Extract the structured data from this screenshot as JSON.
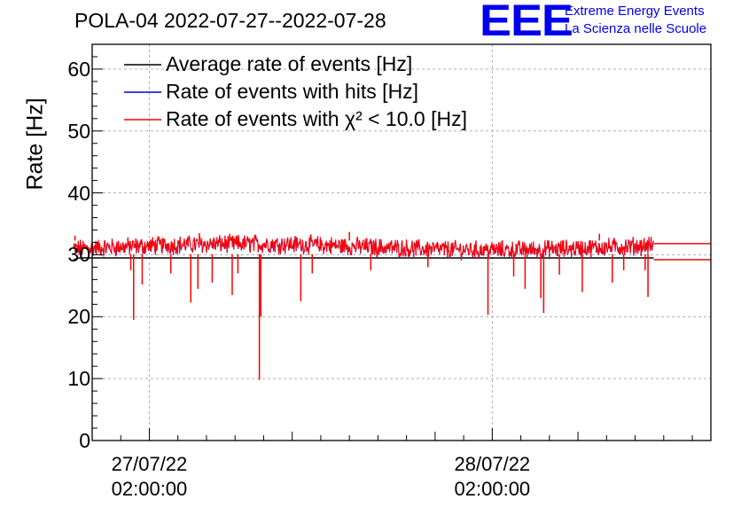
{
  "title": "POLA-04 2022-07-27--2022-07-28",
  "logo": {
    "mark": "EEE",
    "line1": "Extreme Energy Events",
    "line2": "La Scienza nelle Scuole"
  },
  "colors": {
    "average": "#000000",
    "hits": "#0000cc",
    "chi2": "#ff0000",
    "grid": "#b0b0b0",
    "logo": "#0000ee"
  },
  "chart_data": {
    "type": "line",
    "title": "POLA-04 2022-07-27--2022-07-28",
    "xlabel": "",
    "ylabel": "Rate [Hz]",
    "ylim": [
      0,
      64
    ],
    "yticks": [
      0,
      10,
      20,
      30,
      40,
      50,
      60
    ],
    "xlim_hours": [
      -2,
      41.3
    ],
    "xticks": [
      {
        "hour": 2,
        "label_date": "27/07/22",
        "label_time": "02:00:00"
      },
      {
        "hour": 26,
        "label_date": "28/07/22",
        "label_time": "02:00:00"
      }
    ],
    "grid": true,
    "legend_position": "top-left",
    "data_start_hour": -3.3,
    "data_end_hour": 37.3,
    "series": [
      {
        "name": "Average rate of events [Hz]",
        "color": "#000000",
        "type": "step",
        "value": 29.5
      },
      {
        "name": "Rate of events with hits [Hz]",
        "color": "#0000cc",
        "type": "noisy",
        "mean": 31.3
      },
      {
        "name": "Rate of events with χ² < 10.0 [Hz]",
        "color": "#ff0000",
        "type": "noisy",
        "mean": 31.3,
        "tail_levels": [
          31.8,
          29.2
        ]
      }
    ],
    "dips": [
      {
        "hour": 0.7,
        "value": 27.5
      },
      {
        "hour": 0.9,
        "value": 19.5
      },
      {
        "hour": 1.5,
        "value": 25.2
      },
      {
        "hour": 3.5,
        "value": 27.0
      },
      {
        "hour": 4.9,
        "value": 22.3
      },
      {
        "hour": 5.4,
        "value": 24.5
      },
      {
        "hour": 6.4,
        "value": 25.5
      },
      {
        "hour": 7.8,
        "value": 23.5
      },
      {
        "hour": 8.2,
        "value": 27.0
      },
      {
        "hour": 9.7,
        "value": 9.8
      },
      {
        "hour": 9.8,
        "value": 20.0
      },
      {
        "hour": 12.6,
        "value": 22.5
      },
      {
        "hour": 13.4,
        "value": 27.0
      },
      {
        "hour": 17.5,
        "value": 27.5
      },
      {
        "hour": 21.5,
        "value": 28.0
      },
      {
        "hour": 25.7,
        "value": 20.3
      },
      {
        "hour": 27.5,
        "value": 26.5
      },
      {
        "hour": 28.3,
        "value": 24.5
      },
      {
        "hour": 29.4,
        "value": 23.0
      },
      {
        "hour": 29.6,
        "value": 20.6
      },
      {
        "hour": 30.7,
        "value": 26.8
      },
      {
        "hour": 32.3,
        "value": 24.0
      },
      {
        "hour": 34.4,
        "value": 25.5
      },
      {
        "hour": 35.2,
        "value": 27.5
      },
      {
        "hour": 36.7,
        "value": 27.5
      },
      {
        "hour": 36.9,
        "value": 23.2
      }
    ],
    "spikes": [
      {
        "hour": -3.2,
        "value": 33.1
      },
      {
        "hour": 5.5,
        "value": 33.5
      },
      {
        "hour": 16.0,
        "value": 33.7
      },
      {
        "hour": 33.5,
        "value": 33.4
      }
    ]
  }
}
